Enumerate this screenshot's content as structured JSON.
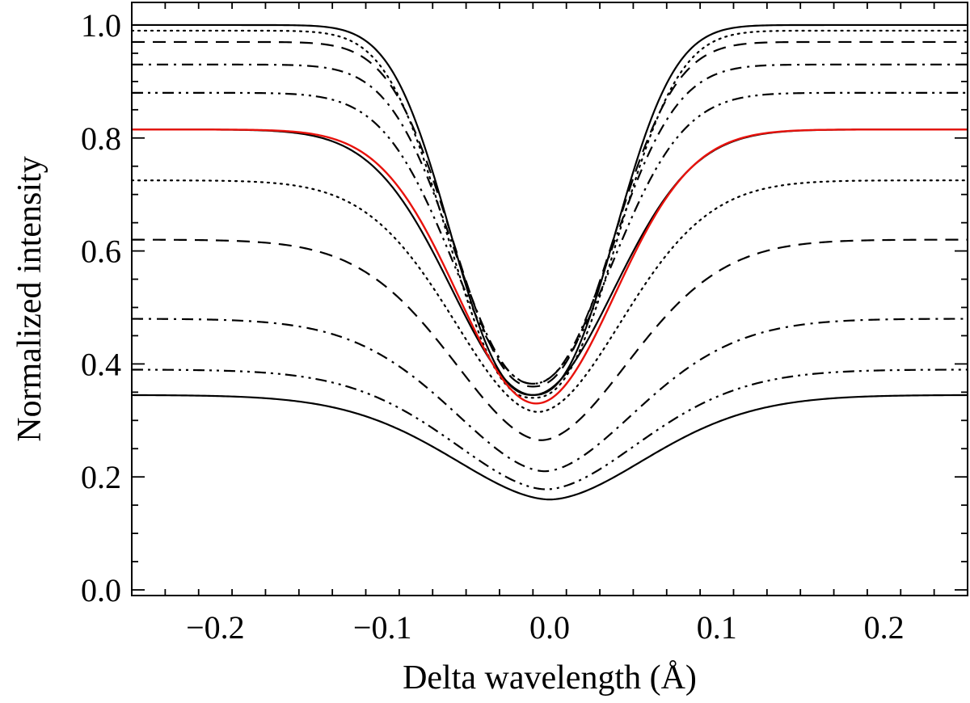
{
  "chart_data": {
    "type": "line",
    "title": "",
    "xlabel": "Delta wavelength (Å)",
    "ylabel": "Normalized intensity",
    "xlim": [
      -0.25,
      0.25
    ],
    "ylim": [
      -0.01,
      1.04
    ],
    "x_ticks": [
      -0.2,
      -0.1,
      0.0,
      0.1,
      0.2
    ],
    "x_tick_labels": [
      "−0.2",
      "−0.1",
      "0.0",
      "0.1",
      "0.2"
    ],
    "y_ticks": [
      0.0,
      0.2,
      0.4,
      0.6,
      0.8,
      1.0
    ],
    "y_tick_labels": [
      "0.0",
      "0.2",
      "0.4",
      "0.6",
      "0.8",
      "1.0"
    ],
    "x_minor_step": 0.02,
    "y_minor_step": 0.05,
    "grid": false,
    "legend": "none",
    "series": [
      {
        "name": "upper solid",
        "style": "solid",
        "color": "#000000",
        "continuum": 1.0,
        "core": 0.345,
        "core_shift": -0.01,
        "width": 0.062,
        "shape": 2.4
      },
      {
        "name": "upper dotted",
        "style": "dotted",
        "color": "#000000",
        "continuum": 0.99,
        "core": 0.34,
        "core_shift": -0.01,
        "width": 0.064,
        "shape": 2.4
      },
      {
        "name": "upper dashed",
        "style": "dashed",
        "color": "#000000",
        "continuum": 0.97,
        "core": 0.36,
        "core_shift": -0.01,
        "width": 0.062,
        "shape": 2.3
      },
      {
        "name": "upper dash-dot",
        "style": "dashdot",
        "color": "#000000",
        "continuum": 0.93,
        "core": 0.365,
        "core_shift": -0.01,
        "width": 0.062,
        "shape": 2.2
      },
      {
        "name": "upper dash-dot-dot",
        "style": "dashdotdot",
        "color": "#000000",
        "continuum": 0.88,
        "core": 0.365,
        "core_shift": -0.01,
        "width": 0.064,
        "shape": 2.1
      },
      {
        "name": "middle solid",
        "style": "solid",
        "color": "#000000",
        "continuum": 0.815,
        "core": 0.345,
        "core_shift": -0.01,
        "width": 0.068,
        "shape": 2.0
      },
      {
        "name": "red reference",
        "style": "solid",
        "color": "#e8120c",
        "continuum": 0.815,
        "core": 0.33,
        "core_shift": -0.008,
        "width": 0.066,
        "shape": 2.0
      },
      {
        "name": "lower dotted",
        "style": "dotted",
        "color": "#000000",
        "continuum": 0.725,
        "core": 0.315,
        "core_shift": -0.007,
        "width": 0.072,
        "shape": 1.9
      },
      {
        "name": "lower dashed",
        "style": "dashed",
        "color": "#000000",
        "continuum": 0.62,
        "core": 0.265,
        "core_shift": -0.005,
        "width": 0.076,
        "shape": 1.85
      },
      {
        "name": "lower dash-dot",
        "style": "dashdot",
        "color": "#000000",
        "continuum": 0.48,
        "core": 0.21,
        "core_shift": -0.003,
        "width": 0.08,
        "shape": 1.8
      },
      {
        "name": "lower dash-dot-dot",
        "style": "dashdotdot",
        "color": "#000000",
        "continuum": 0.39,
        "core": 0.178,
        "core_shift": -0.002,
        "width": 0.082,
        "shape": 1.8
      },
      {
        "name": "lower solid",
        "style": "solid",
        "color": "#000000",
        "continuum": 0.345,
        "core": 0.16,
        "core_shift": 0.0,
        "width": 0.085,
        "shape": 1.8
      }
    ]
  }
}
